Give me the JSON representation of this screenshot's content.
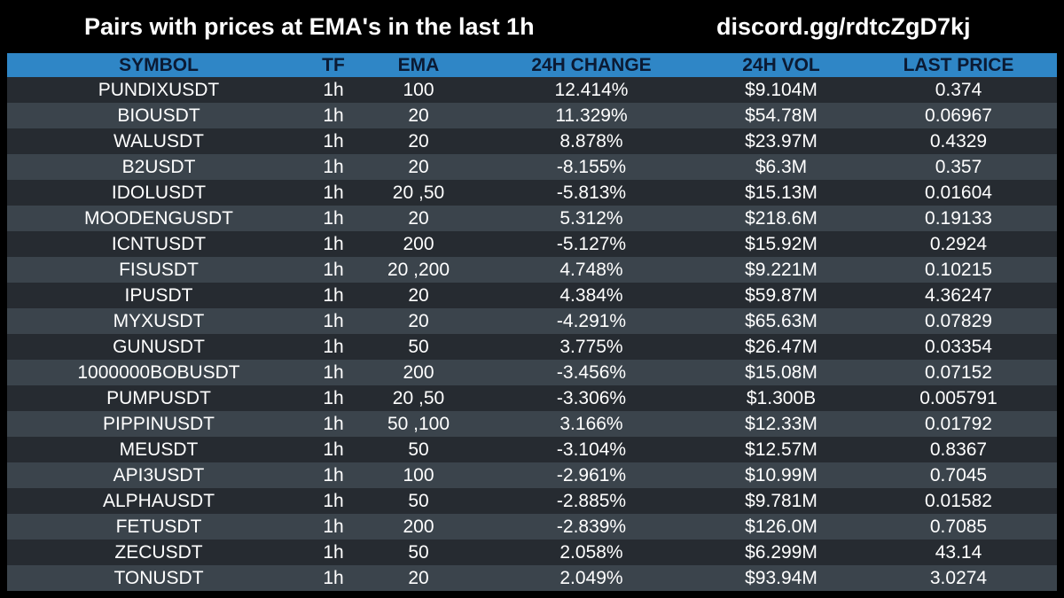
{
  "header": {
    "title": "Pairs with prices at EMA's in the last 1h",
    "link": "discord.gg/rdtcZgD7kj"
  },
  "colors": {
    "background": "#000000",
    "header_row": "#2f86c6",
    "row_dark": "#262b31",
    "row_light": "#3b444c",
    "text": "#ffffff"
  },
  "table": {
    "columns": [
      "SYMBOL",
      "TF",
      "EMA",
      "24H CHANGE",
      "24H VOL",
      "LAST PRICE"
    ],
    "rows": [
      {
        "symbol": "PUNDIXUSDT",
        "tf": "1h",
        "ema": "100",
        "change": "12.414%",
        "vol": "$9.104M",
        "price": "0.374"
      },
      {
        "symbol": "BIOUSDT",
        "tf": "1h",
        "ema": "20",
        "change": "11.329%",
        "vol": "$54.78M",
        "price": "0.06967"
      },
      {
        "symbol": "WALUSDT",
        "tf": "1h",
        "ema": "20",
        "change": "8.878%",
        "vol": "$23.97M",
        "price": "0.4329"
      },
      {
        "symbol": "B2USDT",
        "tf": "1h",
        "ema": "20",
        "change": "-8.155%",
        "vol": "$6.3M",
        "price": "0.357"
      },
      {
        "symbol": "IDOLUSDT",
        "tf": "1h",
        "ema": "20 ,50",
        "change": "-5.813%",
        "vol": "$15.13M",
        "price": "0.01604"
      },
      {
        "symbol": "MOODENGUSDT",
        "tf": "1h",
        "ema": "20",
        "change": "5.312%",
        "vol": "$218.6M",
        "price": "0.19133"
      },
      {
        "symbol": "ICNTUSDT",
        "tf": "1h",
        "ema": "200",
        "change": "-5.127%",
        "vol": "$15.92M",
        "price": "0.2924"
      },
      {
        "symbol": "FISUSDT",
        "tf": "1h",
        "ema": "20 ,200",
        "change": "4.748%",
        "vol": "$9.221M",
        "price": "0.10215"
      },
      {
        "symbol": "IPUSDT",
        "tf": "1h",
        "ema": "20",
        "change": "4.384%",
        "vol": "$59.87M",
        "price": "4.36247"
      },
      {
        "symbol": "MYXUSDT",
        "tf": "1h",
        "ema": "20",
        "change": "-4.291%",
        "vol": "$65.63M",
        "price": "0.07829"
      },
      {
        "symbol": "GUNUSDT",
        "tf": "1h",
        "ema": "50",
        "change": "3.775%",
        "vol": "$26.47M",
        "price": "0.03354"
      },
      {
        "symbol": "1000000BOBUSDT",
        "tf": "1h",
        "ema": "200",
        "change": "-3.456%",
        "vol": "$15.08M",
        "price": "0.07152"
      },
      {
        "symbol": "PUMPUSDT",
        "tf": "1h",
        "ema": "20 ,50",
        "change": "-3.306%",
        "vol": "$1.300B",
        "price": "0.005791"
      },
      {
        "symbol": "PIPPINUSDT",
        "tf": "1h",
        "ema": "50 ,100",
        "change": "3.166%",
        "vol": "$12.33M",
        "price": "0.01792"
      },
      {
        "symbol": "MEUSDT",
        "tf": "1h",
        "ema": "50",
        "change": "-3.104%",
        "vol": "$12.57M",
        "price": "0.8367"
      },
      {
        "symbol": "API3USDT",
        "tf": "1h",
        "ema": "100",
        "change": "-2.961%",
        "vol": "$10.99M",
        "price": "0.7045"
      },
      {
        "symbol": "ALPHAUSDT",
        "tf": "1h",
        "ema": "50",
        "change": "-2.885%",
        "vol": "$9.781M",
        "price": "0.01582"
      },
      {
        "symbol": "FETUSDT",
        "tf": "1h",
        "ema": "200",
        "change": "-2.839%",
        "vol": "$126.0M",
        "price": "0.7085"
      },
      {
        "symbol": "ZECUSDT",
        "tf": "1h",
        "ema": "50",
        "change": "2.058%",
        "vol": "$6.299M",
        "price": "43.14"
      },
      {
        "symbol": "TONUSDT",
        "tf": "1h",
        "ema": "20",
        "change": "2.049%",
        "vol": "$93.94M",
        "price": "3.0274"
      }
    ]
  }
}
